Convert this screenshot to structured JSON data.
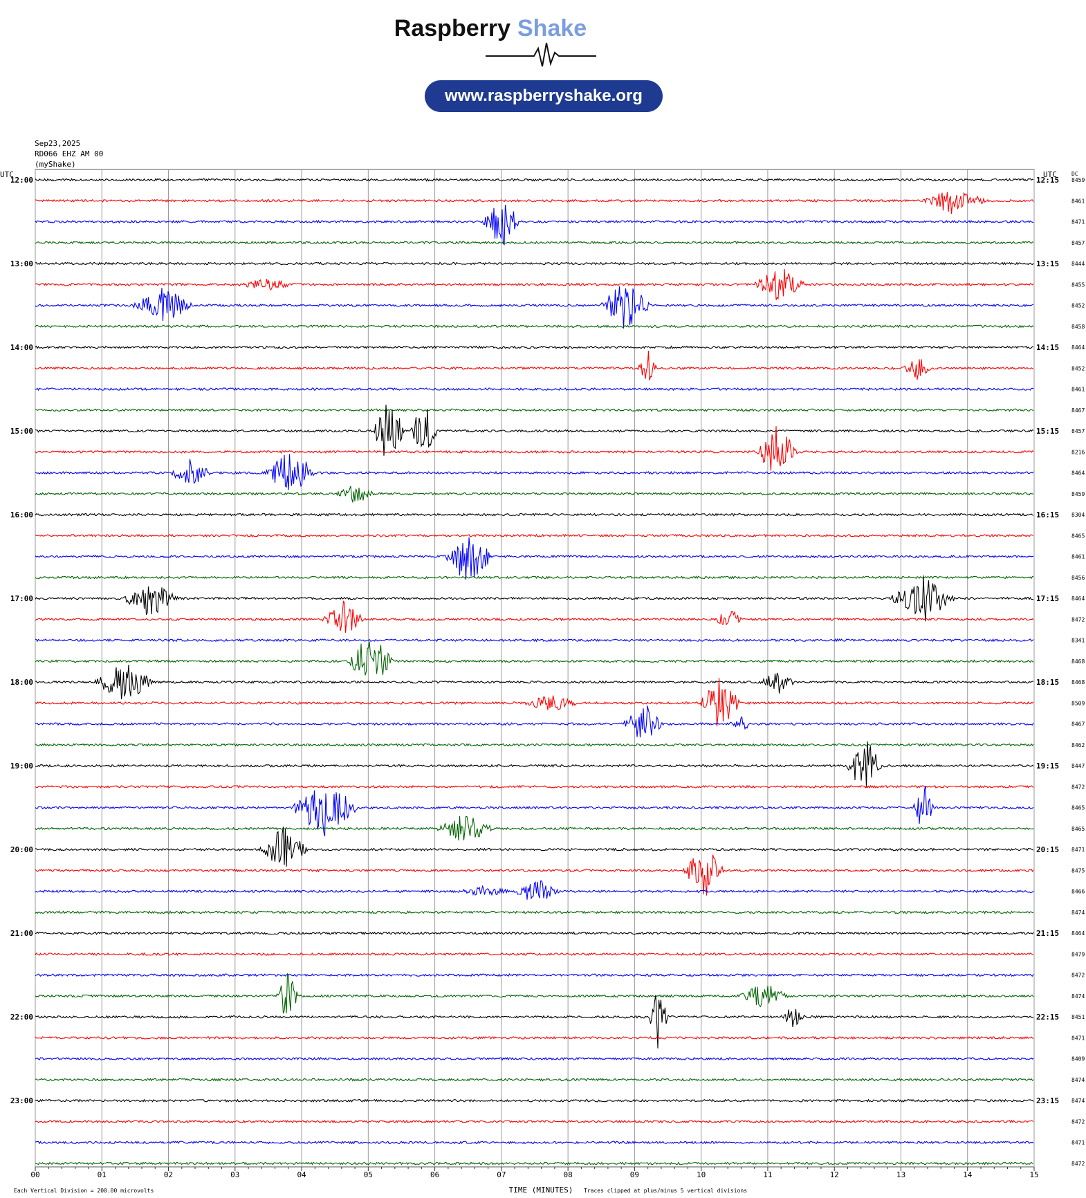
{
  "header": {
    "brand": "Raspberry",
    "brand_accent": "Shake",
    "url": "www.raspberryshake.org"
  },
  "chart_data": {
    "type": "helicorder",
    "date": "Sep23,2025",
    "station": "RD066 EHZ AM 00",
    "source": "(myShake)",
    "left_axis_title": "UTC",
    "right_axis_title": "UTC",
    "dc_title": "DC",
    "row_labels_left": [
      "12:00",
      "13:00",
      "14:00",
      "15:00",
      "16:00",
      "17:00",
      "18:00",
      "19:00",
      "20:00",
      "21:00",
      "22:00",
      "23:00"
    ],
    "row_labels_right": [
      "12:15",
      "13:15",
      "14:15",
      "15:15",
      "16:15",
      "17:15",
      "18:15",
      "19:15",
      "20:15",
      "21:15",
      "22:15",
      "23:15"
    ],
    "dc_values": [
      8459,
      8461,
      8471,
      8457,
      8444,
      8455,
      8452,
      8458,
      8464,
      8452,
      8461,
      8467,
      8457,
      8216,
      8464,
      8459,
      8304,
      8465,
      8461,
      8456,
      8464,
      8472,
      8341,
      8468,
      8468,
      8509,
      8467,
      8462,
      8447,
      8472,
      8465,
      8465,
      8471,
      8475,
      8466,
      8474,
      8464,
      8479,
      8472,
      8474,
      8451,
      8471,
      8409,
      8474,
      8474,
      8472,
      8471,
      8472
    ],
    "colors": [
      "#000000",
      "#ff0000",
      "#0000ff",
      "#006400"
    ],
    "xlim": [
      0,
      15
    ],
    "xticks": [
      {
        "value": 0,
        "label": "00"
      },
      {
        "value": 1,
        "label": "01"
      },
      {
        "value": 2,
        "label": "02"
      },
      {
        "value": 3,
        "label": "03"
      },
      {
        "value": 4,
        "label": "04"
      },
      {
        "value": 5,
        "label": "05"
      },
      {
        "value": 6,
        "label": "06"
      },
      {
        "value": 7,
        "label": "07"
      },
      {
        "value": 8,
        "label": "08"
      },
      {
        "value": 9,
        "label": "09"
      },
      {
        "value": 10,
        "label": "10"
      },
      {
        "value": 11,
        "label": "11"
      },
      {
        "value": 12,
        "label": "12"
      },
      {
        "value": 13,
        "label": "13"
      },
      {
        "value": 14,
        "label": "14"
      },
      {
        "value": 15,
        "label": "15"
      }
    ],
    "xlabel": "TIME (MINUTES)",
    "footer_left": "Each Vertical Division =  200.00 microvolts",
    "footer_right": "Traces clipped at plus/minus 5 vertical divisions"
  }
}
